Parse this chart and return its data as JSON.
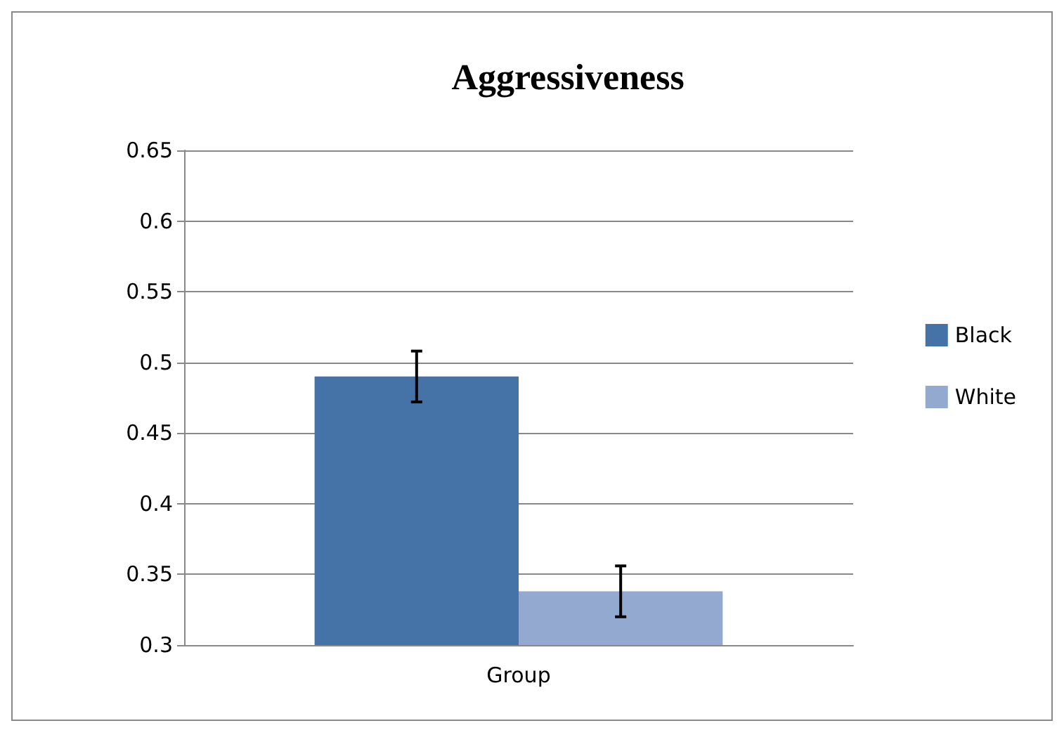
{
  "chart_data": {
    "type": "bar",
    "title": "Aggressiveness",
    "categories": [
      "Group"
    ],
    "series": [
      {
        "name": "Black",
        "color": "#4572a7",
        "values": [
          0.49
        ],
        "errors": [
          0.018
        ]
      },
      {
        "name": "White",
        "color": "#93a9cf",
        "values": [
          0.338
        ],
        "errors": [
          0.018
        ]
      }
    ],
    "ylim": [
      0.3,
      0.65
    ],
    "yticks": [
      0.3,
      0.35,
      0.4,
      0.45,
      0.5,
      0.55,
      0.6,
      0.65
    ],
    "grid": "y",
    "legend": "right"
  }
}
